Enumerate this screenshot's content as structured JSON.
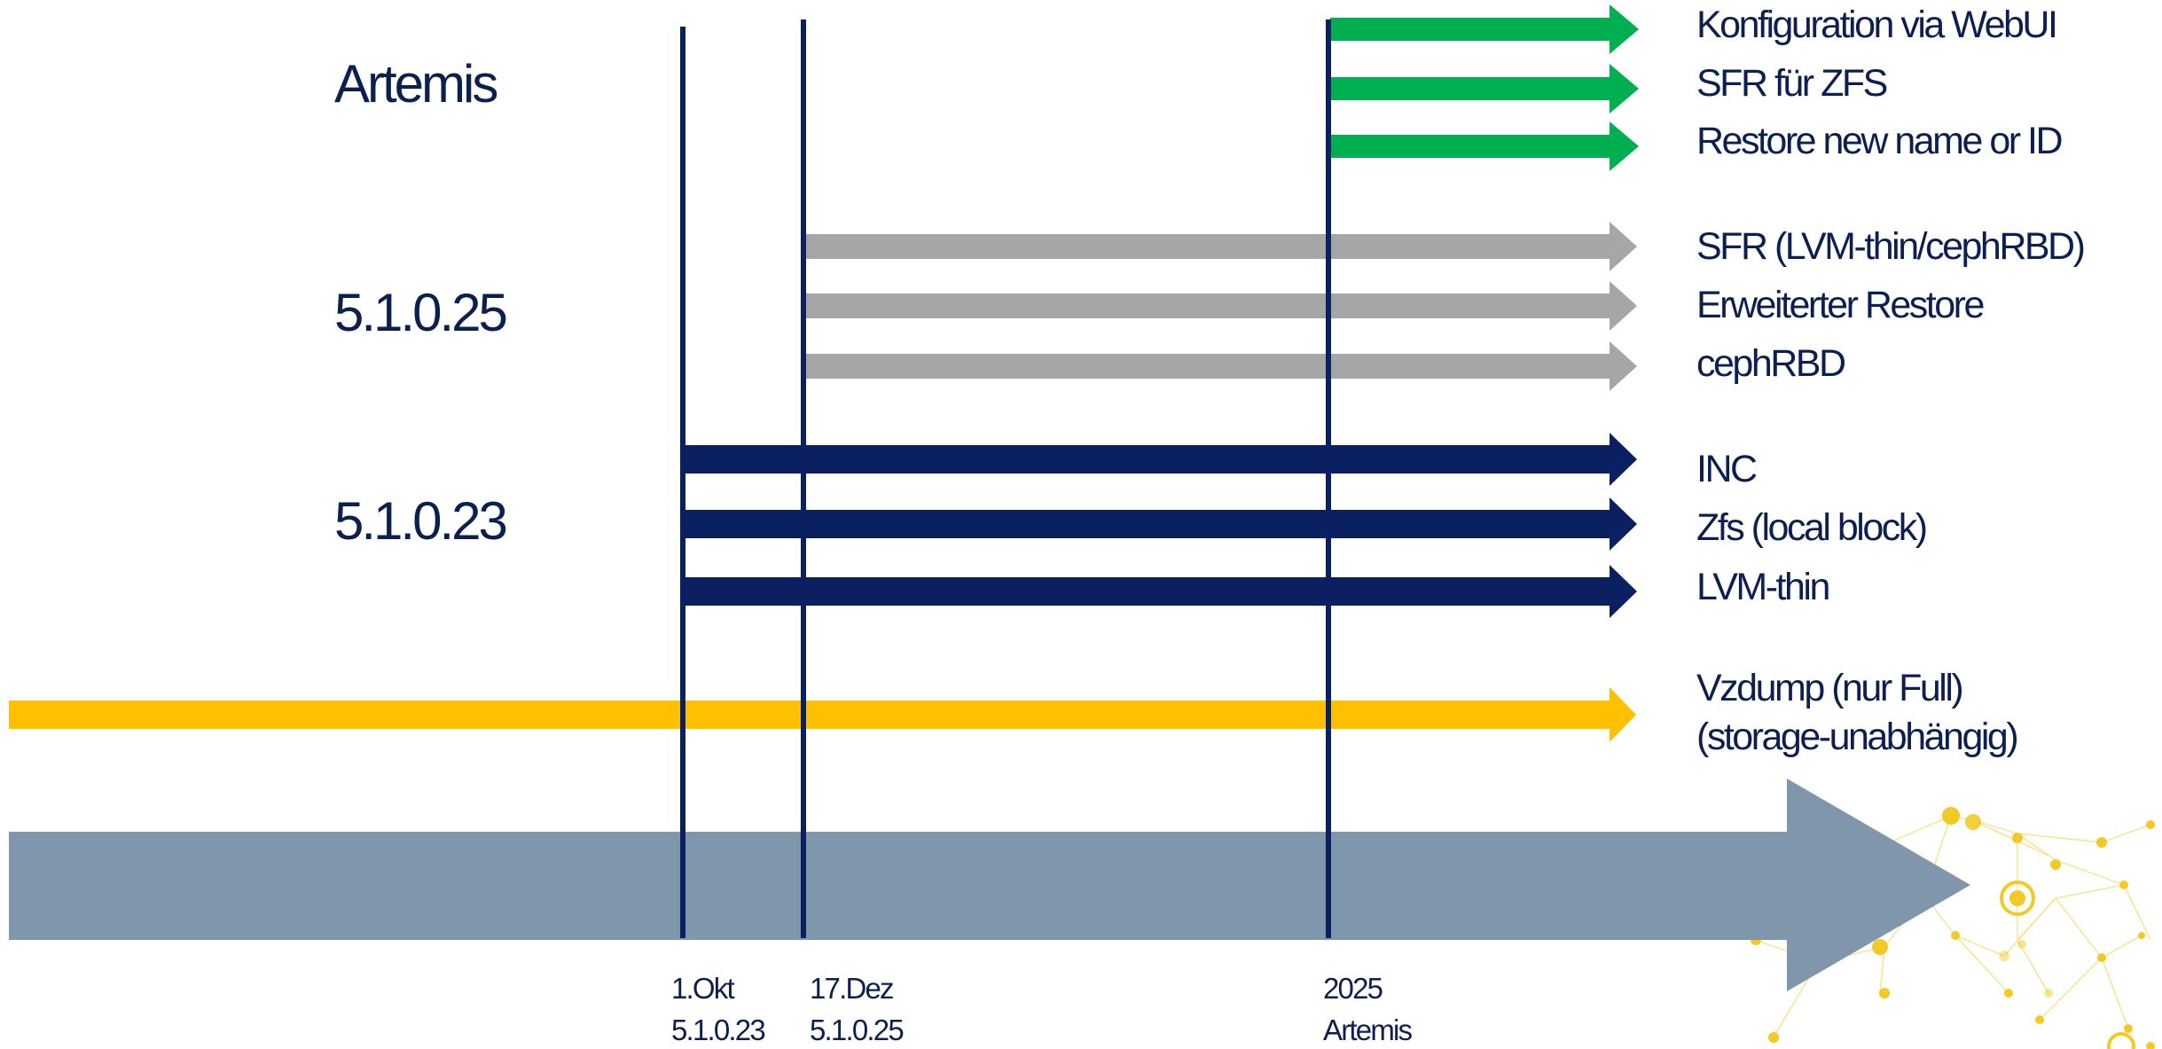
{
  "colors": {
    "artemis": "#00b050",
    "v5_1_0_25": "#a6a6a6",
    "v5_1_0_23": "#0b2060",
    "vzdump": "#ffc000",
    "timeline": "#8096aa",
    "milestone_line": "#0b2060",
    "text": "#0b2050",
    "network_decor": "#f2c000"
  },
  "release_labels": [
    {
      "label": "Artemis"
    },
    {
      "label": "5.1.0.25"
    },
    {
      "label": "5.1.0.23"
    }
  ],
  "features": [
    {
      "label": "Konfiguration via WebUI",
      "release": "Artemis"
    },
    {
      "label": "SFR für ZFS",
      "release": "Artemis"
    },
    {
      "label": "Restore new name or ID",
      "release": "Artemis"
    },
    {
      "label": "SFR (LVM-thin/cephRBD)",
      "release": "5.1.0.25"
    },
    {
      "label": "Erweiterter Restore",
      "release": "5.1.0.25"
    },
    {
      "label": "cephRBD",
      "release": "5.1.0.25"
    },
    {
      "label": "INC",
      "release": "5.1.0.23"
    },
    {
      "label": "Zfs (local block)",
      "release": "5.1.0.23"
    },
    {
      "label": "LVM-thin",
      "release": "5.1.0.23"
    }
  ],
  "vzdump": {
    "line1": "Vzdump (nur Full)",
    "line2": "(storage-unabhängig)"
  },
  "milestones": [
    {
      "date": "1.Okt",
      "release": "5.1.0.23"
    },
    {
      "date": "17.Dez",
      "release": "5.1.0.25"
    },
    {
      "date": "2025",
      "release": "Artemis"
    }
  ],
  "decor": {
    "icon": "network-graph-icon"
  }
}
